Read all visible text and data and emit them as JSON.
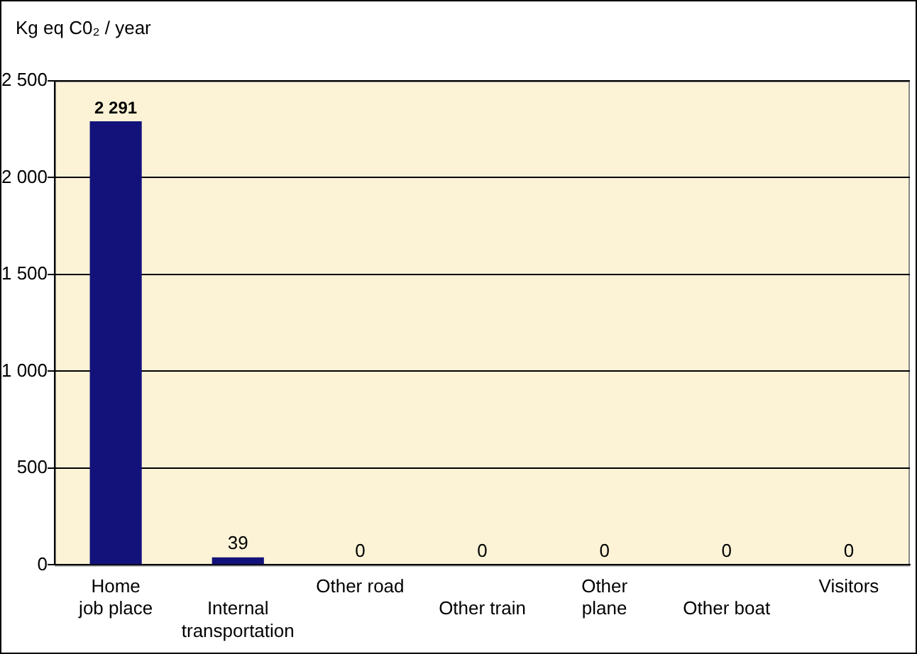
{
  "chart_data": {
    "type": "bar",
    "ylabel": "Kg eq C0₂ / year",
    "categories": [
      "Home\njob place",
      "Internal\ntransportation",
      "Other road",
      "Other train",
      "Other\nplane",
      "Other boat",
      "Visitors"
    ],
    "values": [
      2291,
      39,
      0,
      0,
      0,
      0,
      0
    ],
    "color": "#12127a",
    "value_labels": [
      "2 291",
      "39",
      "0",
      "0",
      "0",
      "0",
      "0"
    ],
    "ylim": [
      0,
      2500
    ],
    "yticks": [
      {
        "value": 0,
        "label": "0"
      },
      {
        "value": 500,
        "label": "500"
      },
      {
        "value": 1000,
        "label": "1 000"
      },
      {
        "value": 1500,
        "label": "1 500"
      },
      {
        "value": 2000,
        "label": "2 000"
      },
      {
        "value": 2500,
        "label": "2 500"
      }
    ],
    "grid": "y",
    "legend": false
  }
}
